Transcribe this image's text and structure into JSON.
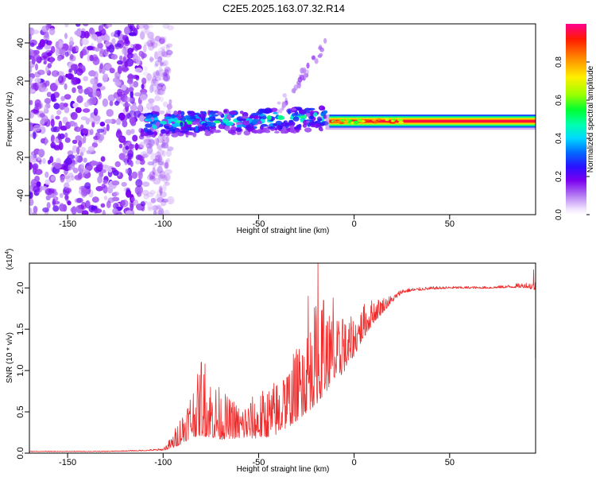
{
  "title": "C2E5.2025.163.07.32.R14",
  "colors": {
    "snr_line": "#ee2b2b",
    "spectrogram_ramp": [
      "#f0e3ff",
      "#c58cf5",
      "#8a00ee",
      "#3a00ff",
      "#0048ff",
      "#00b7ff",
      "#00ffd0",
      "#00ff2a",
      "#9cff00",
      "#fff200",
      "#ff7f00",
      "#ff0000",
      "#ff00a0"
    ]
  },
  "chart_data": [
    {
      "type": "heatmap",
      "name": "spectrogram",
      "xlabel": "Height of straight line (km)",
      "ylabel": "Frequency (Hz)",
      "xlim": [
        -170,
        95
      ],
      "ylim": [
        -50,
        50
      ],
      "x_ticks": [
        -150,
        -100,
        -50,
        0,
        50
      ],
      "x_tick_labels": [
        "-150",
        "-100",
        "-50",
        "0",
        "50"
      ],
      "y_ticks": [
        -40,
        -20,
        0,
        20,
        40
      ],
      "y_tick_labels": [
        "-40",
        "-20",
        "0",
        "20",
        "40"
      ],
      "colorbar": {
        "label": "Normalized spectral amplitude",
        "range": [
          0,
          1
        ],
        "ticks": [
          0.0,
          0.2,
          0.4,
          0.6,
          0.8
        ],
        "tick_labels": [
          "0.0",
          "0.2",
          "0.4",
          "0.6",
          "0.8"
        ]
      },
      "regions": [
        {
          "description": "broadband noise",
          "x_range": [
            -170,
            -102
          ],
          "freq_range": [
            -50,
            50
          ],
          "amplitude": 0.12
        },
        {
          "description": "signal band",
          "x_range": [
            -110,
            -15
          ],
          "freq_center": -2,
          "freq_halfwidth": 6,
          "amplitude": 0.35
        },
        {
          "description": "rising tone",
          "x_range": [
            -40,
            -15
          ],
          "freq_range": [
            5,
            40
          ],
          "amplitude": 0.08
        },
        {
          "description": "steady carrier",
          "x_range": [
            -15,
            95
          ],
          "freq_center": -1,
          "freq_halfwidth": 2,
          "amplitude": 0.95
        }
      ]
    },
    {
      "type": "line",
      "name": "snr",
      "xlabel": "Height of straight line (km)",
      "ylabel": "SNR (10 * v/v)",
      "multiplier_label": "(x10",
      "multiplier_exponent": "4",
      "multiplier_close": ")",
      "xlim": [
        -170,
        95
      ],
      "ylim": [
        0,
        2.3
      ],
      "x_ticks": [
        -150,
        -100,
        -50,
        0,
        50
      ],
      "x_tick_labels": [
        "-150",
        "-100",
        "-50",
        "0",
        "50"
      ],
      "y_ticks": [
        0.0,
        0.5,
        1.0,
        1.5,
        2.0
      ],
      "y_tick_labels": [
        "0.0",
        "0.5",
        "1.0",
        "1.5",
        "2.0"
      ],
      "series": [
        {
          "name": "SNR",
          "x": [
            -170,
            -150,
            -130,
            -110,
            -100,
            -95,
            -90,
            -85,
            -80,
            -75,
            -70,
            -65,
            -60,
            -55,
            -50,
            -45,
            -40,
            -35,
            -30,
            -25,
            -20,
            -15,
            -10,
            -5,
            0,
            5,
            10,
            15,
            20,
            25,
            30,
            40,
            50,
            60,
            70,
            80,
            90,
            95
          ],
          "baseline": [
            0.02,
            0.02,
            0.02,
            0.03,
            0.04,
            0.1,
            0.22,
            0.35,
            0.42,
            0.38,
            0.32,
            0.3,
            0.28,
            0.3,
            0.32,
            0.35,
            0.4,
            0.5,
            0.62,
            0.75,
            0.9,
            1.0,
            1.05,
            1.15,
            1.3,
            1.5,
            1.65,
            1.75,
            1.85,
            1.95,
            1.97,
            1.99,
            2.0,
            2.0,
            2.0,
            2.01,
            2.02,
            2.0
          ],
          "spread": [
            0.005,
            0.005,
            0.006,
            0.01,
            0.02,
            0.12,
            0.3,
            0.45,
            0.6,
            0.55,
            0.45,
            0.35,
            0.3,
            0.35,
            0.4,
            0.45,
            0.5,
            0.55,
            0.65,
            0.75,
            0.9,
            0.75,
            0.55,
            0.45,
            0.35,
            0.3,
            0.22,
            0.14,
            0.06,
            0.04,
            0.03,
            0.025,
            0.02,
            0.02,
            0.02,
            0.025,
            0.05,
            0.08
          ],
          "peaks": [
            {
              "x": -80,
              "y": 1.1
            },
            {
              "x": -78,
              "y": 1.08
            },
            {
              "x": -63,
              "y": 0.62
            },
            {
              "x": -37,
              "y": 0.88
            },
            {
              "x": -27,
              "y": 1.18
            },
            {
              "x": -24,
              "y": 1.9
            },
            {
              "x": -22,
              "y": 1.3
            },
            {
              "x": -19,
              "y": 2.3
            },
            {
              "x": -16,
              "y": 1.85
            },
            {
              "x": -13,
              "y": 1.66
            },
            {
              "x": -11,
              "y": 1.88
            },
            {
              "x": -6,
              "y": 1.62
            },
            {
              "x": 2,
              "y": 1.45
            },
            {
              "x": 9,
              "y": 1.7
            },
            {
              "x": 14,
              "y": 1.82
            },
            {
              "x": 94,
              "y": 2.22
            }
          ]
        }
      ]
    }
  ]
}
